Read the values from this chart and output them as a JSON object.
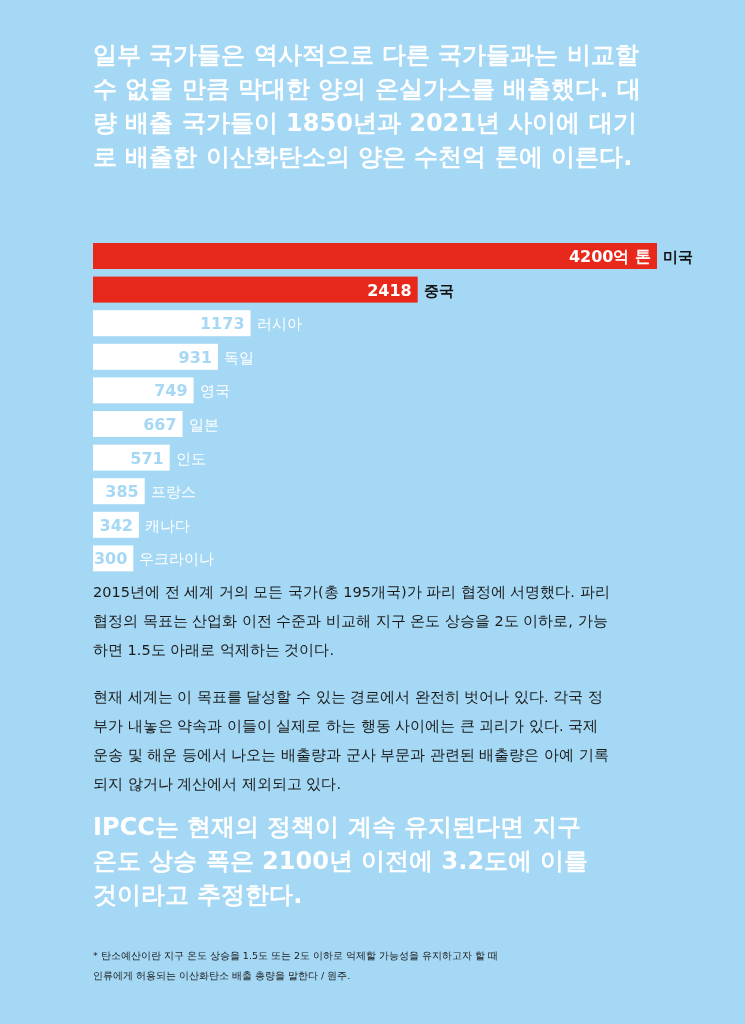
{
  "chart_data": {
    "type": "bar",
    "orientation": "horizontal",
    "title": "일부 국가들은 역사적으로 다른 국가들과는 비교할 수 없을 만큼 막대한 양의 온실가스를 배출했다. 대량 배출 국가들이 1850년과 2021년 사이에 대기로 배출한 이산화탄소의 양은 수천억 톤에 이른다.",
    "categories": [
      "미국",
      "중국",
      "러시아",
      "독일",
      "영국",
      "일본",
      "인도",
      "프랑스",
      "캐나다",
      "우크라이나"
    ],
    "values": [
      4200,
      2418,
      1173,
      931,
      749,
      667,
      571,
      385,
      342,
      300
    ],
    "colors": [
      "#e8281a",
      "#e8281a",
      "#ffffff",
      "#ffffff",
      "#ffffff",
      "#ffffff",
      "#ffffff",
      "#ffffff",
      "#ffffff",
      "#ffffff"
    ],
    "value_labels": [
      "4200억 톤",
      "2418",
      "1173",
      "931",
      "749",
      "667",
      "571",
      "385",
      "342",
      "300"
    ],
    "annotations": [
      "2015년에 전 세계 거의 모든 국가(총 195개국)가 파리 협정에 서명했다. 파리 협정의 목표는 산업화 이전 수준과 비교해 지구 온도 상승을 2도 이하로, 가능하면 1.5도 아래로 억제하는 것이다.",
      "현재 세계는 이 목표를 달성할 수 있는 경로에서 완전히 벗어나 있다. 각국 정부가 내놓은 약속과 이들이 실제로 하는 행동 사이에는 큰 괴리가 있다. 국제 운송 및 해운 등에서 나오는 배출량과 군사 부문과 관련된 배출량은 아예 기록되지 않거나 계산에서 제외되고 있다.",
      "IPCC는 현재의 정책이 계속 유지된다면 지구 온도 상승 폭은 2100년 이전에 3.2도에 이를 것이라고 추정한다.",
      "* 탄소예산이란 지구 온도 상승을 1.5도 또는 2도 이하로 억제할 가능성을 유지하고자 할 때 인류에게 허용되는 이산화탄소 배출 총량을 말한다 / 원주."
    ]
  }
}
